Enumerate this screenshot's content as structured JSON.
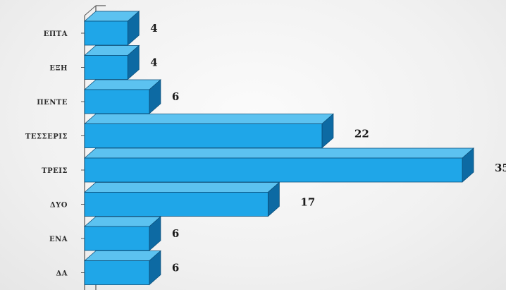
{
  "chart_data": {
    "type": "bar",
    "orientation": "horizontal",
    "style": "3d",
    "categories": [
      "ΕΠΤΑ",
      "ΕΞΗ",
      "ΠΕΝΤΕ",
      "ΤΕΣΣΕΡΙΣ",
      "ΤΡΕΙΣ",
      "ΔΥΟ",
      "ΕΝΑ",
      "ΔΑ"
    ],
    "values": [
      4,
      4,
      6,
      22,
      35,
      17,
      6,
      6
    ],
    "title": "",
    "xlabel": "",
    "ylabel": "",
    "xlim": [
      0,
      35
    ],
    "grid": false,
    "legend": "none",
    "colors": {
      "bar_front": "#1fa6e8",
      "bar_top": "#5cc2f0",
      "bar_side": "#0d6aa3",
      "bar_edge": "#0b4f7a",
      "axis": "#555555",
      "text": "#1a1a1a"
    }
  }
}
